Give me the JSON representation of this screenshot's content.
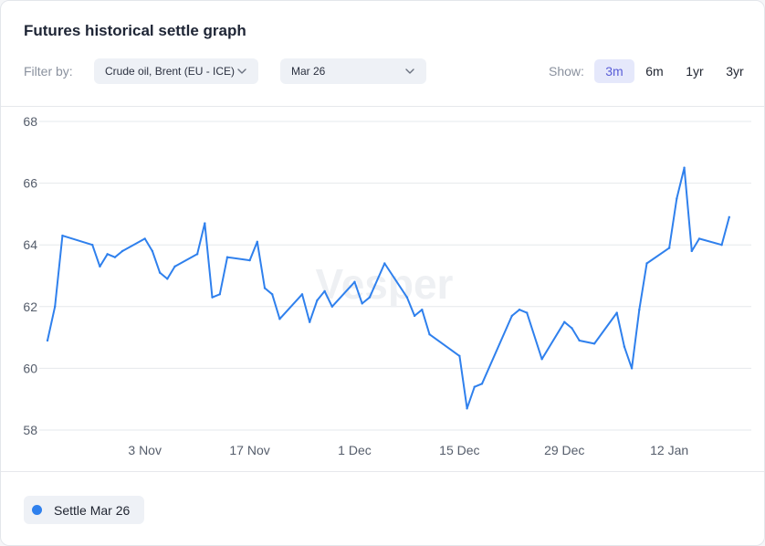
{
  "header": {
    "title": "Futures historical settle graph",
    "filter_label": "Filter by:",
    "commodity_select": "Crude oil, Brent (EU - ICE)",
    "contract_select": "Mar 26",
    "show_label": "Show:",
    "ranges": [
      "3m",
      "6m",
      "1yr",
      "3yr"
    ],
    "active_range": "3m"
  },
  "watermark": "Vesper",
  "legend": {
    "label": "Settle Mar 26",
    "color": "#2f80ed"
  },
  "colors": {
    "line": "#2f80ed",
    "grid": "#e6e8ec",
    "active_tab_bg": "#e5e8fb",
    "active_tab_text": "#5a5ed8"
  },
  "chart_data": {
    "type": "line",
    "title": "",
    "xlabel": "",
    "ylabel": "",
    "ylim": [
      58,
      68
    ],
    "yticks": [
      58,
      60,
      62,
      64,
      66,
      68
    ],
    "xlim": [
      "2025-10-21",
      "2026-01-21"
    ],
    "xticks": [
      {
        "date": "2025-11-03",
        "label": "3 Nov"
      },
      {
        "date": "2025-11-17",
        "label": "17 Nov"
      },
      {
        "date": "2025-12-01",
        "label": "1 Dec"
      },
      {
        "date": "2025-12-15",
        "label": "15 Dec"
      },
      {
        "date": "2025-12-29",
        "label": "29 Dec"
      },
      {
        "date": "2026-01-12",
        "label": "12 Jan"
      }
    ],
    "grid": true,
    "legend_position": "bottom-left",
    "series": [
      {
        "name": "Settle Mar 26",
        "points": [
          [
            "2025-10-21",
            60.9
          ],
          [
            "2025-10-22",
            62.0
          ],
          [
            "2025-10-23",
            64.3
          ],
          [
            "2025-10-27",
            64.0
          ],
          [
            "2025-10-28",
            63.3
          ],
          [
            "2025-10-29",
            63.7
          ],
          [
            "2025-10-30",
            63.6
          ],
          [
            "2025-10-31",
            63.8
          ],
          [
            "2025-11-03",
            64.2
          ],
          [
            "2025-11-04",
            63.8
          ],
          [
            "2025-11-05",
            63.1
          ],
          [
            "2025-11-06",
            62.9
          ],
          [
            "2025-11-07",
            63.3
          ],
          [
            "2025-11-10",
            63.7
          ],
          [
            "2025-11-11",
            64.7
          ],
          [
            "2025-11-12",
            62.3
          ],
          [
            "2025-11-13",
            62.4
          ],
          [
            "2025-11-14",
            63.6
          ],
          [
            "2025-11-17",
            63.5
          ],
          [
            "2025-11-18",
            64.1
          ],
          [
            "2025-11-19",
            62.6
          ],
          [
            "2025-11-20",
            62.4
          ],
          [
            "2025-11-21",
            61.6
          ],
          [
            "2025-11-24",
            62.4
          ],
          [
            "2025-11-25",
            61.5
          ],
          [
            "2025-11-26",
            62.2
          ],
          [
            "2025-11-27",
            62.5
          ],
          [
            "2025-11-28",
            62.0
          ],
          [
            "2025-12-01",
            62.8
          ],
          [
            "2025-12-02",
            62.1
          ],
          [
            "2025-12-03",
            62.3
          ],
          [
            "2025-12-05",
            63.4
          ],
          [
            "2025-12-08",
            62.3
          ],
          [
            "2025-12-09",
            61.7
          ],
          [
            "2025-12-10",
            61.9
          ],
          [
            "2025-12-11",
            61.1
          ],
          [
            "2025-12-15",
            60.4
          ],
          [
            "2025-12-16",
            58.7
          ],
          [
            "2025-12-17",
            59.4
          ],
          [
            "2025-12-18",
            59.5
          ],
          [
            "2025-12-22",
            61.7
          ],
          [
            "2025-12-23",
            61.9
          ],
          [
            "2025-12-24",
            61.8
          ],
          [
            "2025-12-26",
            60.3
          ],
          [
            "2025-12-29",
            61.5
          ],
          [
            "2025-12-30",
            61.3
          ],
          [
            "2025-12-31",
            60.9
          ],
          [
            "2026-01-02",
            60.8
          ],
          [
            "2026-01-05",
            61.8
          ],
          [
            "2026-01-06",
            60.7
          ],
          [
            "2026-01-07",
            60.0
          ],
          [
            "2026-01-08",
            61.9
          ],
          [
            "2026-01-09",
            63.4
          ],
          [
            "2026-01-12",
            63.9
          ],
          [
            "2026-01-13",
            65.5
          ],
          [
            "2026-01-14",
            66.5
          ],
          [
            "2026-01-15",
            63.8
          ],
          [
            "2026-01-16",
            64.2
          ],
          [
            "2026-01-19",
            64.0
          ],
          [
            "2026-01-20",
            64.9
          ]
        ]
      }
    ]
  }
}
